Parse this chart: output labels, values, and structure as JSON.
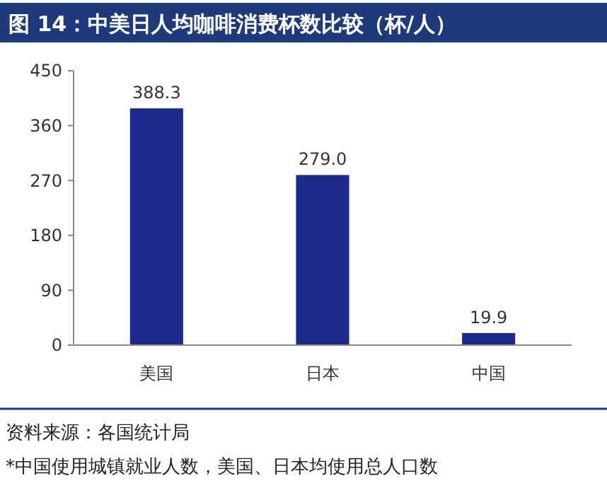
{
  "chart_data": {
    "type": "bar",
    "title": "图 14：中美日人均咖啡消费杯数比较（杯/人）",
    "categories": [
      "美国",
      "日本",
      "中国"
    ],
    "values": [
      388.3,
      279.0,
      19.9
    ],
    "value_labels": [
      "388.3",
      "279.0",
      "19.9"
    ],
    "color": "#1c2a8c",
    "ylim": [
      0,
      450
    ],
    "yticks": [
      0,
      90,
      180,
      270,
      360,
      450
    ],
    "grid": false,
    "annotations": [
      "资料来源：各国统计局",
      "*中国使用城镇就业人数，美国、日本均使用总人口数"
    ]
  }
}
